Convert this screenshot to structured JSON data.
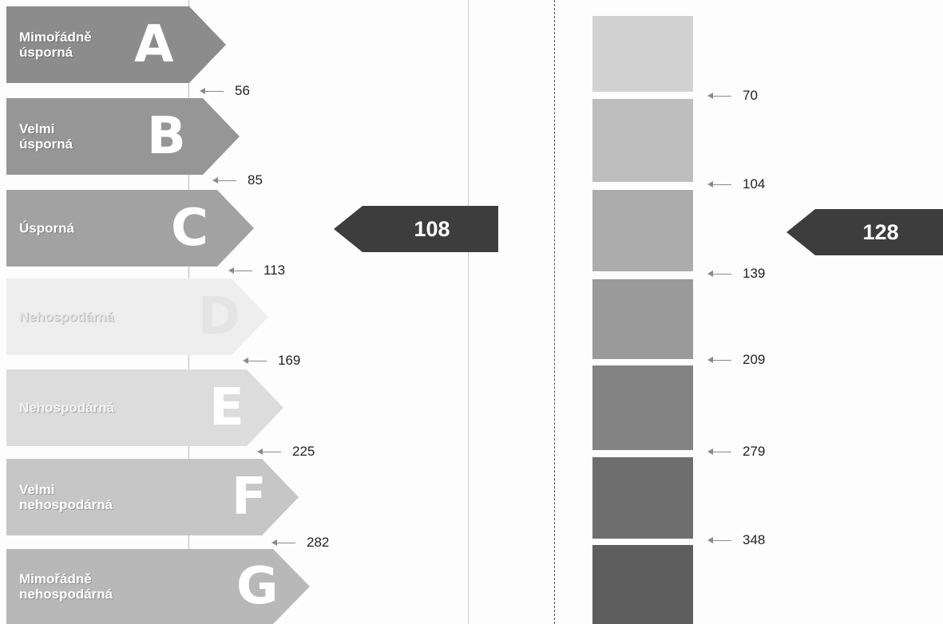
{
  "classes": [
    {
      "letter": "A",
      "label": "Mimořádně\núsporná",
      "color": "#8c8c8c",
      "limit": "56"
    },
    {
      "letter": "B",
      "label": "Velmi\núsporná",
      "color": "#969696",
      "limit": "85"
    },
    {
      "letter": "C",
      "label": "Úsporná",
      "color": "#a2a2a2",
      "limit": "113"
    },
    {
      "letter": "D",
      "label": "Nehospodárná",
      "color": "#eeeeee",
      "limit": "169"
    },
    {
      "letter": "E",
      "label": "Nehospodárná",
      "color": "#dcdcdc",
      "limit": "225"
    },
    {
      "letter": "F",
      "label": "Velmi\nnehospodárná",
      "color": "#c6c6c6",
      "limit": "282"
    },
    {
      "letter": "G",
      "label": "Mimořádně\nnehospodárná",
      "color": "#b8b8b8",
      "limit": ""
    }
  ],
  "left_indicator": {
    "value": "108",
    "color": "#3d3d3d"
  },
  "right_scale": [
    {
      "color": "#d2d2d2",
      "limit": "70"
    },
    {
      "color": "#bebebe",
      "limit": "104"
    },
    {
      "color": "#acacac",
      "limit": "139"
    },
    {
      "color": "#9a9a9a",
      "limit": "209"
    },
    {
      "color": "#838383",
      "limit": "279"
    },
    {
      "color": "#6e6e6e",
      "limit": "348"
    },
    {
      "color": "#5e5e5e",
      "limit": ""
    }
  ],
  "right_indicator": {
    "value": "128",
    "color": "#3d3d3d"
  }
}
